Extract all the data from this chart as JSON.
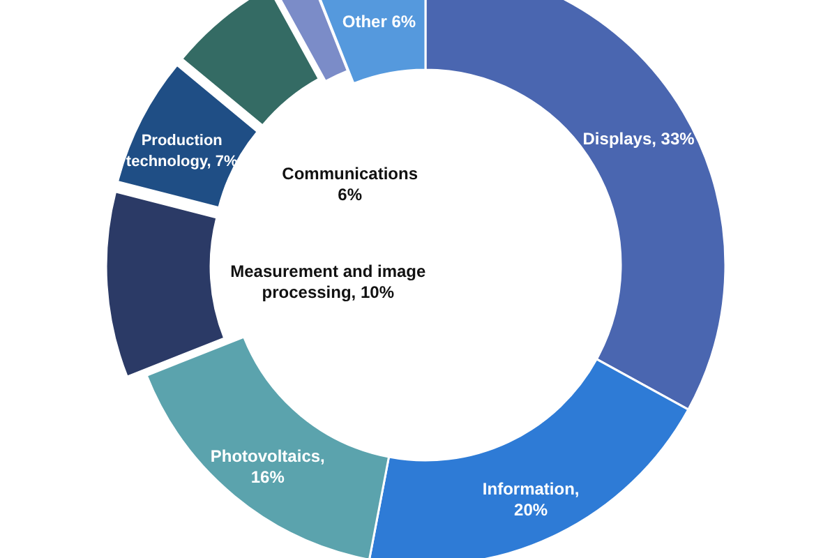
{
  "chart_data": {
    "type": "donut",
    "categories": [
      "Displays, 33%",
      "Information, 20%",
      "Photovoltaics, 16%",
      "Measurement and image processing, 10%",
      "Production technology, 7%",
      "Communications 6%",
      null,
      "Other 6%"
    ],
    "values": [
      33,
      20,
      16,
      10,
      7,
      6,
      2,
      6
    ],
    "colors": [
      "#4a66b0",
      "#2e7bd6",
      "#5ba3ad",
      "#2b3a66",
      "#1f4e85",
      "#346b64",
      "#7b8cc8",
      "#5599dd"
    ]
  }
}
